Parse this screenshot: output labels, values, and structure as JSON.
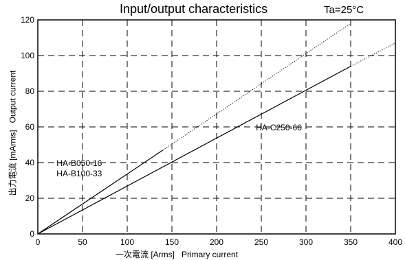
{
  "chart_data": {
    "type": "line",
    "title": "Input/output characteristics",
    "condition": "Ta=25°C",
    "xlabel": "一次電流 [Arms]   Primary current",
    "ylabel": "出力電流 [mArms]   Output current",
    "xlim": [
      0,
      400
    ],
    "ylim": [
      0,
      120
    ],
    "x_ticks": [
      0,
      50,
      100,
      150,
      200,
      250,
      300,
      350,
      400
    ],
    "y_ticks": [
      0,
      20,
      40,
      60,
      80,
      100,
      120
    ],
    "grid": true,
    "series": [
      {
        "name": "HA-B050-16\nHA-B100-33",
        "label_lines": [
          "HA-B050-16",
          "HA-B100-33"
        ],
        "points": [
          [
            0,
            0
          ],
          [
            140,
            47
          ]
        ],
        "extrapolated": [
          [
            140,
            47
          ],
          [
            350,
            118
          ]
        ]
      },
      {
        "name": "HA-C250-66",
        "label_lines": [
          "HA-C250-66"
        ],
        "points": [
          [
            0,
            0
          ],
          [
            350,
            94
          ]
        ],
        "extrapolated": [
          [
            350,
            94
          ],
          [
            400,
            107
          ]
        ]
      }
    ]
  }
}
